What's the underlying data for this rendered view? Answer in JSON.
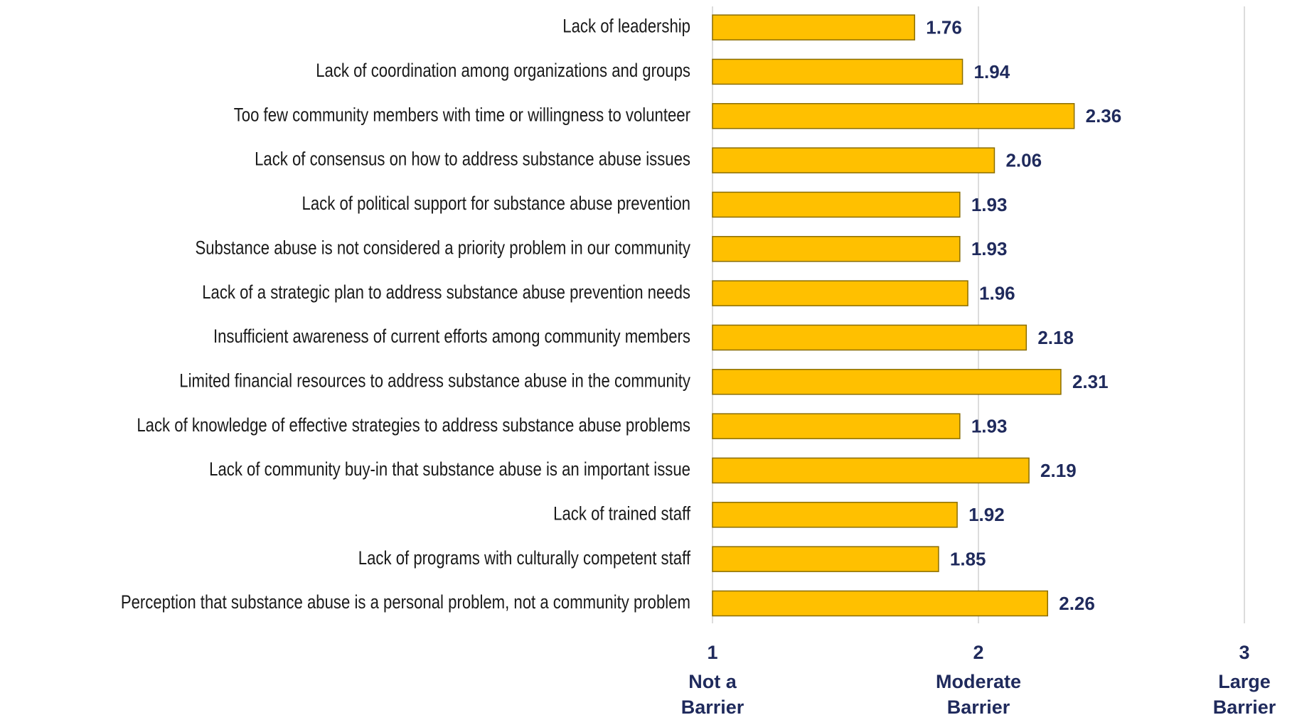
{
  "chart_data": {
    "type": "barh",
    "categories": [
      "Lack of leadership",
      "Lack of coordination among organizations and groups",
      "Too few community members with time or willingness to volunteer",
      "Lack of consensus on how to address substance abuse issues",
      "Lack of political support for substance abuse prevention",
      "Substance abuse is not considered a priority problem in our community",
      "Lack of a strategic plan to address substance abuse prevention needs",
      "Insufficient awareness of current efforts among community members",
      "Limited financial resources to address substance abuse in the community",
      "Lack of knowledge of effective strategies to address substance abuse problems",
      "Lack of community buy-in that substance abuse is an important issue",
      "Lack of trained staff",
      "Lack of programs with culturally competent staff",
      "Perception that substance abuse is a personal problem, not a community problem"
    ],
    "values": [
      1.76,
      1.94,
      2.36,
      2.06,
      1.93,
      1.93,
      1.96,
      2.18,
      2.31,
      1.93,
      2.19,
      1.92,
      1.85,
      2.26
    ],
    "color": "#ffc000",
    "xlim": [
      1,
      3
    ],
    "xticks": [
      1,
      2,
      3
    ],
    "xtick_captions": [
      [
        "Not a",
        "Barrier"
      ],
      [
        "Moderate",
        "Barrier"
      ],
      [
        "Large",
        "Barrier"
      ]
    ],
    "grid": true
  }
}
